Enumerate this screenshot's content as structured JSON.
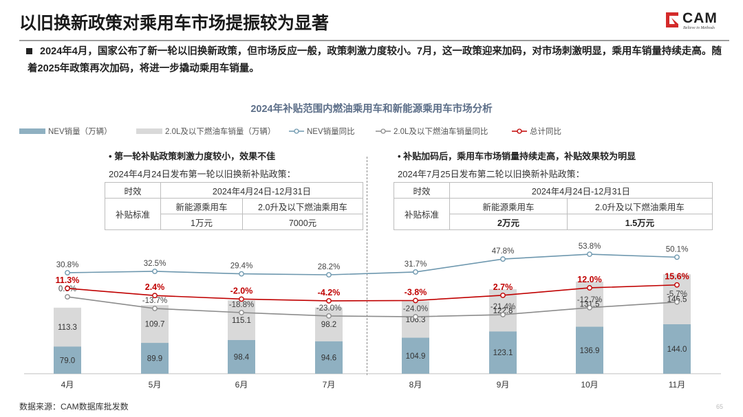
{
  "title": "以旧换新政策对乘用车市场提振较为显著",
  "logo": {
    "text": "CAM",
    "tagline": "Believe in Methods"
  },
  "lead": "2024年4月，国家公布了新一轮以旧换新政策，但市场反应一般，政策刺激力度较小。7月，这一政策迎来加码，对市场刺激明显，乘用车销量持续走高。随着2025年政策再次加码，将进一步撬动乘用车销量。",
  "left_panel": {
    "heading": "• 第一轮补贴政策刺激力度较小，效果不佳",
    "subheading": "2024年4月24日发布第一轮以旧换新补贴政策：",
    "row1_label": "时效",
    "row1_value": "2024年4月24日-12月31日",
    "row2_label": "补贴标准",
    "col_nev": "新能源乘用车",
    "col_ice": "2.0升及以下燃油乘用车",
    "val_nev": "1万元",
    "val_ice": "7000元"
  },
  "right_panel": {
    "heading": "• 补贴加码后，乘用车市场销量持续走高，补贴效果较为明显",
    "subheading": "2024年7月25日发布第二轮以旧换新补贴政策：",
    "row1_label": "时效",
    "row1_value": "2024年4月24日-12月31日",
    "row2_label": "补贴标准",
    "col_nev": "新能源乘用车",
    "col_ice": "2.0升及以下燃油乘用车",
    "val_nev": "2万元",
    "val_ice": "1.5万元"
  },
  "source": "数据来源：CAM数据库批发数",
  "page_number": "65",
  "chart_data": {
    "type": "bar",
    "title": "2024年补贴范围内燃油乘用车和新能源乘用车市场分析",
    "categories": [
      "4月",
      "5月",
      "6月",
      "7月",
      "8月",
      "9月",
      "10月",
      "11月"
    ],
    "stacked": true,
    "series": [
      {
        "name": "NEV销量（万辆）",
        "type": "bar",
        "color": "#8fb0c1",
        "values": [
          79.0,
          89.9,
          98.4,
          94.6,
          104.9,
          123.1,
          136.9,
          144.0
        ]
      },
      {
        "name": "2.0L及以下燃油车销量（万辆）",
        "type": "bar",
        "color": "#d9d9d9",
        "values": [
          113.3,
          109.7,
          115.1,
          98.2,
          106.3,
          122.8,
          131.5,
          145.5
        ]
      },
      {
        "name": "NEV销量同比",
        "type": "line",
        "color": "#6d97ae",
        "labels": [
          "30.8%",
          "32.5%",
          "29.4%",
          "28.2%",
          "31.7%",
          "47.8%",
          "53.8%",
          "50.1%"
        ],
        "values": [
          30.8,
          32.5,
          29.4,
          28.2,
          31.7,
          47.8,
          53.8,
          50.1
        ]
      },
      {
        "name": "2.0L及以下燃油车销量同比",
        "type": "line",
        "color": "#8c8c8c",
        "labels": [
          "0.8%",
          "-13.7%",
          "-18.8%",
          "-23.0%",
          "-24.0%",
          "-21.4%",
          "-12.7%",
          "-5.7%"
        ],
        "values": [
          0.8,
          -13.7,
          -18.8,
          -23.0,
          -24.0,
          -21.4,
          -12.7,
          -5.7
        ]
      },
      {
        "name": "总计同比",
        "type": "line",
        "color": "#c00000",
        "labels": [
          "11.3%",
          "2.4%",
          "-2.0%",
          "-4.2%",
          "-3.8%",
          "2.7%",
          "12.0%",
          "15.6%"
        ],
        "values": [
          11.3,
          2.4,
          -2.0,
          -4.2,
          -3.8,
          2.7,
          12.0,
          15.6
        ]
      }
    ],
    "legend_position": "top",
    "grid": false
  }
}
